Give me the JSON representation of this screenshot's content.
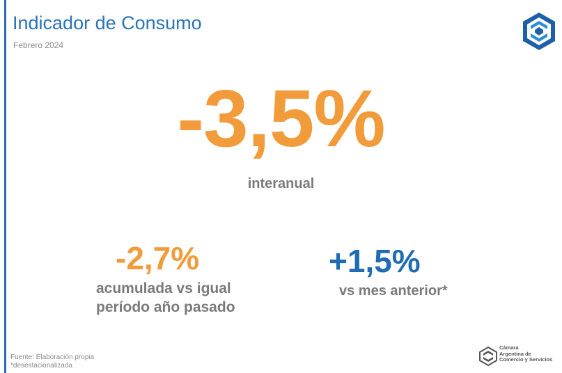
{
  "header": {
    "title": "Indicador de Consumo",
    "period": "Febrero 2024"
  },
  "main_indicator": {
    "value": "-3,5%",
    "label": "interanual"
  },
  "accumulated": {
    "value": "-2,7%",
    "label_line1": "acumulada vs igual",
    "label_line2": "período año pasado"
  },
  "month_over_month": {
    "value": "+1,5%",
    "label": "vs mes anterior*"
  },
  "footer": {
    "source": "Fuente: Elaboración propia",
    "note": "*desestacionalizada",
    "org_line1": "Cámara",
    "org_line2": "Argentina de",
    "org_line3": "Comercio y Servicios"
  },
  "colors": {
    "title_blue": "#2a73b8",
    "accent_orange": "#f29b3a",
    "positive_blue": "#1f6cb3",
    "label_gray": "#7a7a7a"
  },
  "icons": {
    "top_logo": "cac-hexagon-logo-icon",
    "footer_logo": "cac-logo-icon"
  }
}
